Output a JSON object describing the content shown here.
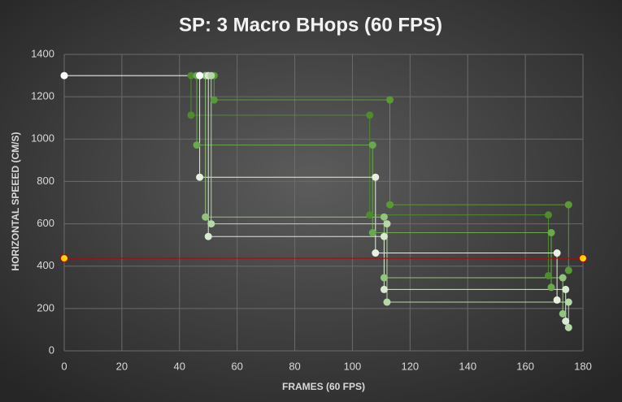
{
  "chart_data": {
    "type": "scatter_line",
    "title": "SP: 3 Macro BHops (60 FPS)",
    "x_label": "FRAMES (60 FPS)",
    "y_label": "HORIZONTAL SPEEED (CM/S)",
    "xlim": [
      0,
      180
    ],
    "xticks": [
      0,
      20,
      40,
      60,
      80,
      100,
      120,
      140,
      160,
      180
    ],
    "ylim": [
      0,
      1400
    ],
    "yticks": [
      0,
      200,
      400,
      600,
      800,
      1000,
      1200,
      1400
    ],
    "grid": true,
    "series": [
      {
        "color": "#4f8a2f",
        "x": [
          44,
          44,
          106,
          106,
          168,
          168
        ],
        "values": [
          1300,
          1113,
          1113,
          642,
          642,
          355
        ]
      },
      {
        "color": "#5a9a35",
        "x": [
          52,
          52,
          113,
          113,
          175,
          175
        ],
        "values": [
          1300,
          1185,
          1185,
          690,
          690,
          380
        ]
      },
      {
        "color": "#6aa84f",
        "x": [
          46,
          46,
          107,
          107,
          169,
          169
        ],
        "values": [
          1300,
          972,
          972,
          558,
          558,
          300
        ]
      },
      {
        "color": "#e8f0e0",
        "x": [
          47,
          47,
          108,
          108,
          171,
          171
        ],
        "values": [
          1300,
          820,
          820,
          462,
          462,
          240
        ]
      },
      {
        "color": "#93c47d",
        "x": [
          49,
          49,
          111,
          111,
          173,
          173
        ],
        "values": [
          1300,
          632,
          632,
          345,
          345,
          175
        ]
      },
      {
        "color": "#d9ead3",
        "x": [
          50,
          50,
          111,
          111,
          174,
          174
        ],
        "values": [
          1300,
          540,
          540,
          290,
          290,
          140
        ]
      },
      {
        "color": "#b6d7a8",
        "x": [
          51,
          51,
          112,
          112,
          175,
          175
        ],
        "values": [
          1300,
          600,
          600,
          230,
          230,
          110
        ]
      },
      {
        "color": "#ffffff",
        "x": [
          0,
          47
        ],
        "values": [
          1300,
          1300
        ]
      },
      {
        "color": "#c00000",
        "x": [
          0,
          180
        ],
        "values": [
          437,
          437
        ]
      }
    ]
  }
}
